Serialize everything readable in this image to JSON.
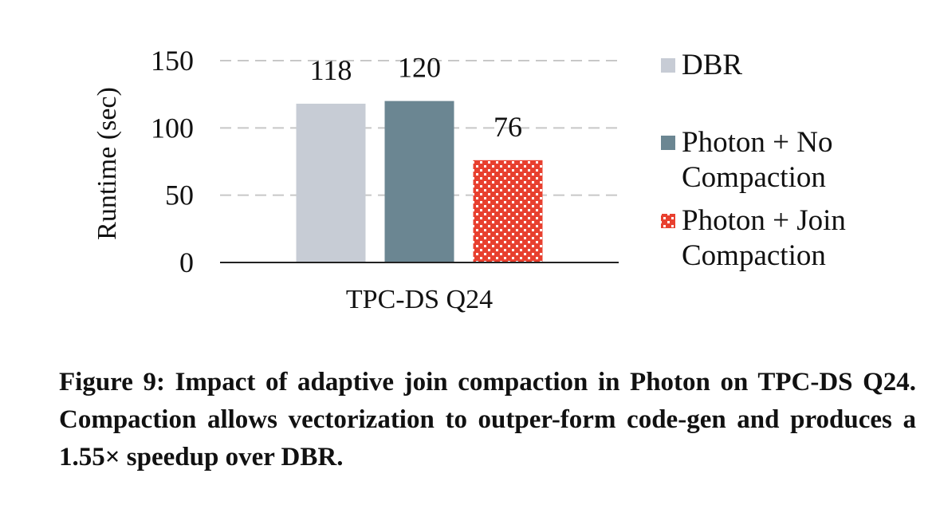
{
  "chart_data": {
    "type": "bar",
    "categories": [
      "TPC-DS Q24"
    ],
    "series": [
      {
        "name": "DBR",
        "values": [
          118
        ],
        "color": "#c7ccd5",
        "pattern": "solid"
      },
      {
        "name": "Photon + No Compaction",
        "values": [
          120
        ],
        "color": "#6b8692",
        "pattern": "solid"
      },
      {
        "name": "Photon + Join Compaction",
        "values": [
          76
        ],
        "color": "#e8402f",
        "pattern": "checker"
      }
    ],
    "ylabel": "Runtime (sec)",
    "ylim": [
      0,
      150
    ],
    "yticks": [
      0,
      50,
      100,
      150
    ],
    "grid": true,
    "legend_position": "right",
    "legend_lines": [
      [
        "DBR"
      ],
      [
        "Photon + No",
        "Compaction"
      ],
      [
        "Photon + Join",
        "Compaction"
      ]
    ]
  },
  "caption": {
    "label": "Figure 9:",
    "text": "Impact of adaptive join compaction in Photon on TPC-DS Q24. Compaction allows vectorization to outper-form code-gen and produces a 1.55× speedup over DBR."
  }
}
